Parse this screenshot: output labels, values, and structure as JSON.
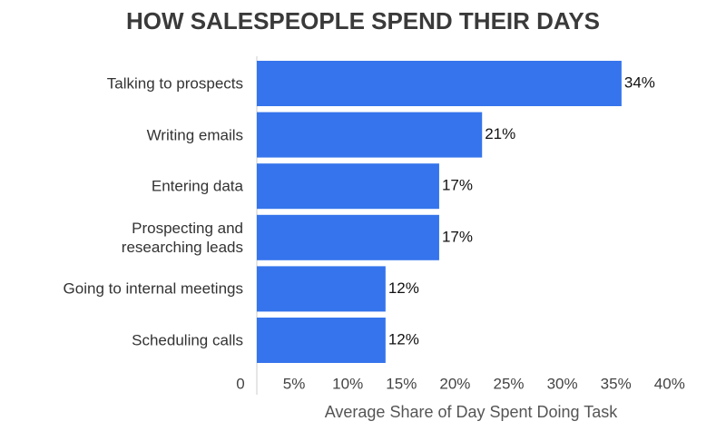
{
  "chart_data": {
    "type": "bar",
    "orientation": "horizontal",
    "title": "HOW SALESPEOPLE SPEND THEIR DAYS",
    "x_label": "Average Share of Day Spent Doing Task",
    "categories": [
      "Talking to prospects",
      "Writing emails",
      "Entering data",
      "Prospecting and\nresearching leads",
      "Going to internal meetings",
      "Scheduling calls"
    ],
    "values": [
      34,
      21,
      17,
      17,
      12,
      12
    ],
    "value_labels": [
      "34%",
      "21%",
      "17%",
      "17%",
      "12%",
      "12%"
    ],
    "color": "#3574ec",
    "xlim": [
      0,
      40
    ],
    "xticks": [
      0,
      {
        "value": 5,
        "label": "5%"
      },
      {
        "value": 10,
        "label": "10%"
      },
      {
        "value": 15,
        "label": "15%"
      },
      {
        "value": 20,
        "label": "20%"
      },
      {
        "value": 25,
        "label": "25%"
      },
      {
        "value": 30,
        "label": "30%"
      },
      {
        "value": 35,
        "label": "35%"
      },
      {
        "value": 40,
        "label": "40%"
      }
    ]
  }
}
